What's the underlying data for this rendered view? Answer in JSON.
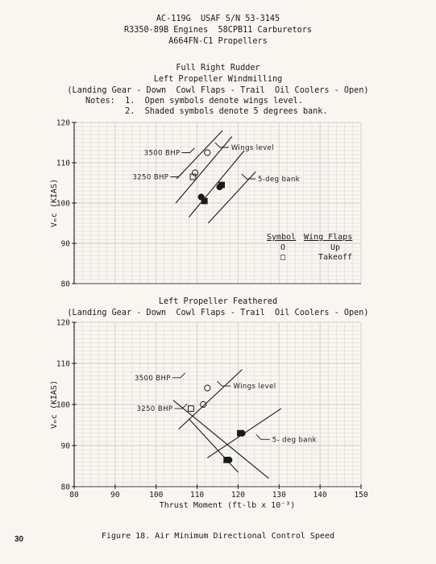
{
  "header": {
    "line1": "AC-119G  USAF S/N 53-3145",
    "line2": "R3350-89B Engines  58CPB11 Carburetors",
    "line3": "A664FN-C1 Propellers"
  },
  "chart_data": [
    {
      "type": "scatter",
      "title": "Full Right Rudder",
      "subtitle": "Left Propeller Windmilling",
      "conditions": "(Landing Gear - Down  Cowl Flaps - Trail  Oil Coolers - Open)",
      "notes": [
        "Notes:  1.  Open symbols denote wings level.",
        "        2.  Shaded symbols denote 5 degrees bank."
      ],
      "xlim": [
        80,
        150
      ],
      "ylim": [
        80,
        120
      ],
      "yticks": [
        "120",
        "110",
        "100",
        "90",
        "80"
      ],
      "ylabel": "Vₘc (KIAS)",
      "grid": true,
      "legend": {
        "placement": "right",
        "header_symbol": "Symbol",
        "header_flaps": "Wing Flaps",
        "rows": [
          {
            "symbol": "circle",
            "glyph": "O",
            "label": "Up"
          },
          {
            "symbol": "square",
            "glyph": "□",
            "label": "Takeoff"
          }
        ]
      },
      "points": [
        {
          "x": 112.5,
          "y": 112.5,
          "symbol": "circle",
          "filled": false
        },
        {
          "x": 109.5,
          "y": 107.5,
          "symbol": "circle",
          "filled": false
        },
        {
          "x": 109.0,
          "y": 106.5,
          "symbol": "square",
          "filled": false
        },
        {
          "x": 111.0,
          "y": 101.5,
          "symbol": "circle",
          "filled": true
        },
        {
          "x": 111.8,
          "y": 100.5,
          "symbol": "square",
          "filled": true
        },
        {
          "x": 116.0,
          "y": 104.5,
          "symbol": "square",
          "filled": true
        },
        {
          "x": 115.5,
          "y": 104.0,
          "symbol": "circle",
          "filled": true
        }
      ],
      "lines": [
        {
          "x": [
            104.8,
            118.5
          ],
          "y": [
            100.0,
            116.5
          ]
        },
        {
          "x": [
            108.0,
            121.5
          ],
          "y": [
            96.5,
            113.0
          ]
        },
        {
          "x": [
            105.0,
            116.2
          ],
          "y": [
            106.0,
            118.0
          ]
        },
        {
          "x": [
            112.7,
            124.3
          ],
          "y": [
            95.0,
            107.8
          ]
        }
      ],
      "annotations": [
        {
          "text": "3500 BHP",
          "at_x": 109.8,
          "at_y": 112.5
        },
        {
          "text": "3250 BHP",
          "at_x": 107.0,
          "at_y": 106.5
        },
        {
          "text": "Wings level",
          "at_x": 114.0,
          "at_y": 113.8
        },
        {
          "text": "5-deg bank",
          "at_x": 120.5,
          "at_y": 106.0
        }
      ]
    },
    {
      "type": "scatter",
      "title": "Left Propeller Feathered",
      "conditions": "(Landing Gear - Down  Cowl Flaps - Trail  Oil Coolers - Open)",
      "xlim": [
        80,
        150
      ],
      "ylim": [
        80,
        120
      ],
      "xticks": [
        "80",
        "90",
        "100",
        "110",
        "120",
        "130",
        "140",
        "150"
      ],
      "yticks": [
        "120",
        "110",
        "100",
        "90",
        "80"
      ],
      "xlabel": "Thrust Moment (ft-lb x 10⁻³)",
      "ylabel": "Vₘc (KIAS)",
      "grid": true,
      "points": [
        {
          "x": 112.5,
          "y": 104.0,
          "symbol": "circle",
          "filled": false
        },
        {
          "x": 111.5,
          "y": 100.0,
          "symbol": "circle",
          "filled": false
        },
        {
          "x": 108.5,
          "y": 99.0,
          "symbol": "square",
          "filled": false
        },
        {
          "x": 120.5,
          "y": 93.0,
          "symbol": "square",
          "filled": true
        },
        {
          "x": 121.0,
          "y": 93.0,
          "symbol": "circle",
          "filled": true
        },
        {
          "x": 117.2,
          "y": 86.5,
          "symbol": "square",
          "filled": true
        },
        {
          "x": 117.8,
          "y": 86.5,
          "symbol": "circle",
          "filled": true
        }
      ],
      "lines": [
        {
          "x": [
            105.5,
            121.0
          ],
          "y": [
            94.0,
            108.5
          ]
        },
        {
          "x": [
            112.5,
            130.5
          ],
          "y": [
            87.0,
            99.0
          ]
        },
        {
          "x": [
            104.2,
            127.5
          ],
          "y": [
            101.0,
            82.0
          ]
        },
        {
          "x": [
            108.0,
            120.0
          ],
          "y": [
            96.5,
            83.5
          ]
        }
      ],
      "annotations": [
        {
          "text": "3500 BHP",
          "at_x": 107.5,
          "at_y": 106.5
        },
        {
          "text": "3250 BHP",
          "at_x": 108.0,
          "at_y": 99.0
        },
        {
          "text": "Wings level",
          "at_x": 114.5,
          "at_y": 104.5
        },
        {
          "text": "5- deg bank",
          "at_x": 124.0,
          "at_y": 91.5
        }
      ]
    }
  ],
  "footer": {
    "page_number": "30",
    "caption": "Figure  18.  Air Minimum Directional Control Speed"
  }
}
